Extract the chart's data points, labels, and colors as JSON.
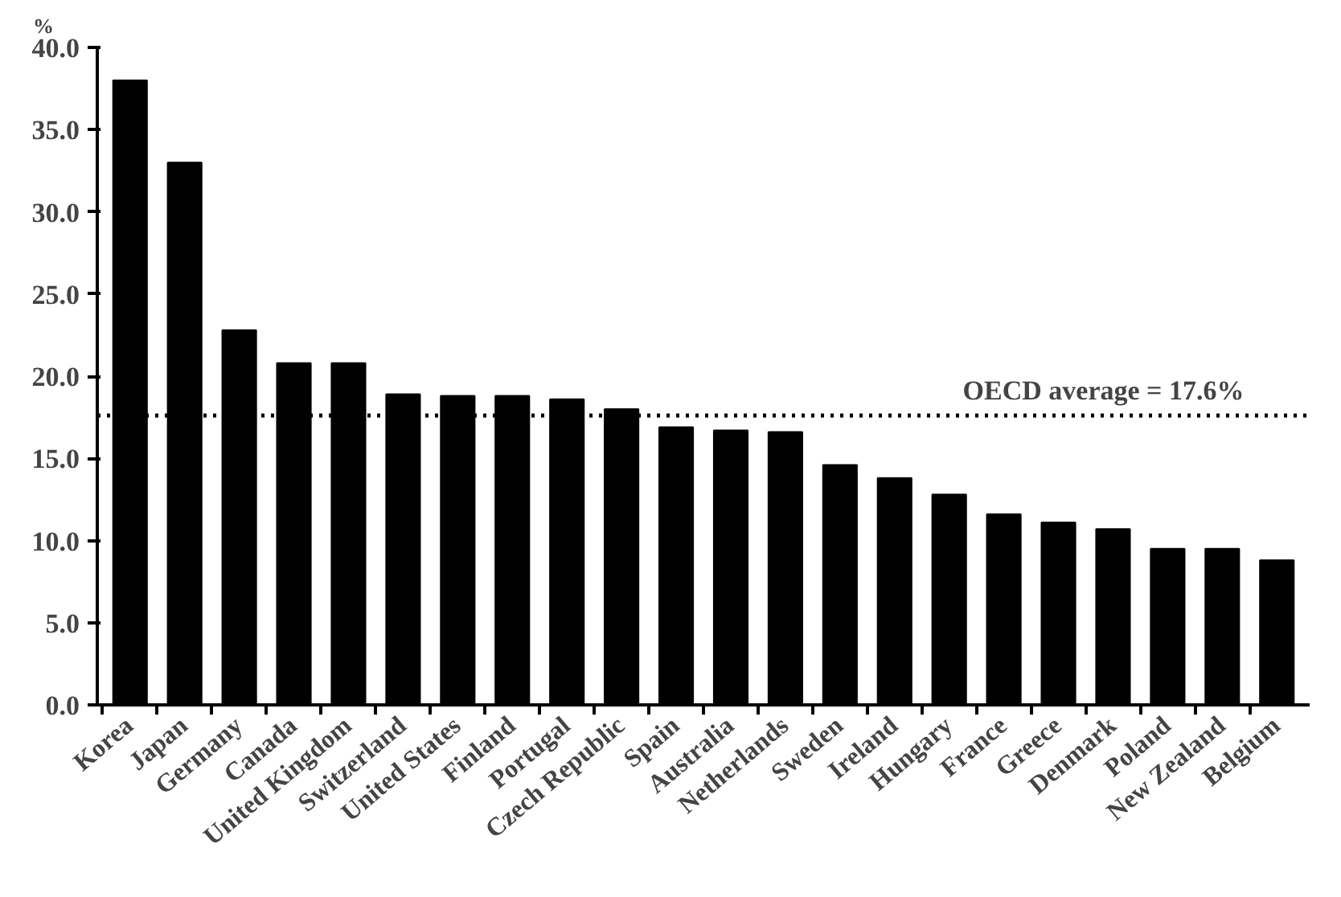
{
  "chart_data": {
    "type": "bar",
    "ylabel": "%",
    "categories": [
      "Korea",
      "Japan",
      "Germany",
      "Canada",
      "United Kingdom",
      "Switzerland",
      "United States",
      "Finland",
      "Portugal",
      "Czech Republic",
      "Spain",
      "Australia",
      "Netherlands",
      "Sweden",
      "Ireland",
      "Hungary",
      "France",
      "Greece",
      "Denmark",
      "Poland",
      "New Zealand",
      "Belgium"
    ],
    "values": [
      38.0,
      33.0,
      22.8,
      20.8,
      20.8,
      18.9,
      18.8,
      18.8,
      18.6,
      18.0,
      16.9,
      16.7,
      16.6,
      14.6,
      13.8,
      12.8,
      11.6,
      11.1,
      10.7,
      9.5,
      9.5,
      8.8
    ],
    "color": "#000000",
    "ylim": [
      0,
      40
    ],
    "yticks": [
      {
        "value": 0,
        "label": "0.0"
      },
      {
        "value": 5,
        "label": "5.0"
      },
      {
        "value": 10,
        "label": "10.0"
      },
      {
        "value": 15,
        "label": "15.0"
      },
      {
        "value": 20,
        "label": "20.0"
      },
      {
        "value": 25,
        "label": "25.0"
      },
      {
        "value": 30,
        "label": "30.0"
      },
      {
        "value": 35,
        "label": "35.0"
      },
      {
        "value": 40,
        "label": "40.0"
      }
    ],
    "ref_lines": [
      {
        "axis": "y",
        "value": 17.6,
        "label": "OECD average = 17.6%",
        "line_style": "dotted",
        "color": "#000000"
      }
    ],
    "grid": false
  }
}
